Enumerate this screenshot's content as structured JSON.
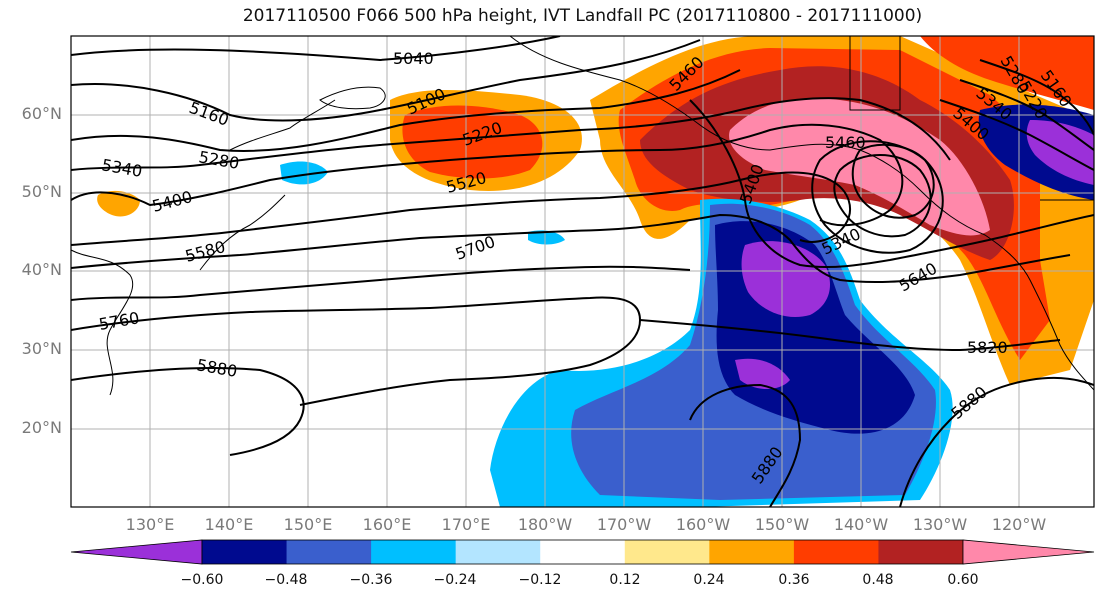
{
  "title": "2017110500 F066 500 hPa height, IVT Landfall PC (2017110800 - 2017111000)",
  "lat_labels": [
    "60°N",
    "50°N",
    "40°N",
    "30°N",
    "20°N"
  ],
  "lon_labels": [
    "130°E",
    "140°E",
    "150°E",
    "160°E",
    "170°E",
    "180°W",
    "170°W",
    "160°W",
    "150°W",
    "140°W",
    "130°W",
    "120°W"
  ],
  "contour_labels": [
    "5040",
    "5160",
    "5100",
    "5220",
    "5280",
    "5340",
    "5400",
    "5520",
    "5460",
    "5580",
    "5700",
    "5760",
    "5880",
    "5400",
    "5340",
    "5460",
    "5640",
    "5820",
    "5880",
    "5880",
    "5160",
    "5220",
    "5280",
    "5340",
    "5400"
  ],
  "colorbar": {
    "ticks": [
      "−0.60",
      "−0.48",
      "−0.36",
      "−0.24",
      "−0.12",
      "0.12",
      "0.24",
      "0.36",
      "0.48",
      "0.60"
    ],
    "colors": [
      "#9b30d9",
      "#000a8f",
      "#3a5fcd",
      "#00bfff",
      "#b3e5ff",
      "#ffffff",
      "#ffe88c",
      "#ffa500",
      "#ff3d00",
      "#b22222",
      "#ff88aa"
    ]
  },
  "field_colors": {
    "strong_negative": "#9b30d9",
    "negative_2": "#000a8f",
    "negative_3": "#3a5fcd",
    "negative_4": "#00bfff",
    "weak_positive": "#ffa500",
    "positive_2": "#ff3d00",
    "positive_3": "#b22222",
    "strong_positive": "#ff88aa"
  }
}
